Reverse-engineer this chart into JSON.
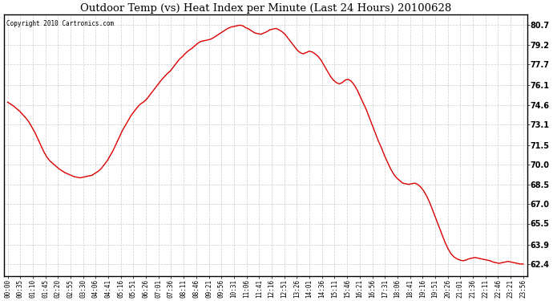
{
  "title": "Outdoor Temp (vs) Heat Index per Minute (Last 24 Hours) 20100628",
  "copyright": "Copyright 2010 Cartronics.com",
  "line_color": "#dd0000",
  "line_width": 1.0,
  "background_color": "#ffffff",
  "grid_color": "#cccccc",
  "grid_style": "--",
  "yticks": [
    62.4,
    63.9,
    65.5,
    67.0,
    68.5,
    70.0,
    71.5,
    73.1,
    74.6,
    76.1,
    77.7,
    79.2,
    80.7
  ],
  "ylim": [
    61.5,
    81.5
  ],
  "xtick_labels": [
    "00:00",
    "00:35",
    "01:10",
    "01:45",
    "02:20",
    "02:55",
    "03:30",
    "04:06",
    "04:41",
    "05:16",
    "05:51",
    "06:26",
    "07:01",
    "07:36",
    "08:11",
    "08:46",
    "09:21",
    "09:56",
    "10:31",
    "11:06",
    "11:41",
    "12:16",
    "12:51",
    "13:26",
    "14:01",
    "14:36",
    "15:11",
    "15:46",
    "16:21",
    "16:56",
    "17:31",
    "18:06",
    "18:41",
    "19:16",
    "19:51",
    "20:26",
    "21:01",
    "21:36",
    "22:11",
    "22:46",
    "23:21",
    "23:56"
  ],
  "y_values": [
    74.8,
    74.65,
    74.5,
    74.3,
    74.1,
    73.85,
    73.6,
    73.3,
    72.9,
    72.5,
    72.0,
    71.5,
    71.0,
    70.6,
    70.3,
    70.1,
    69.9,
    69.7,
    69.55,
    69.4,
    69.3,
    69.2,
    69.1,
    69.05,
    69.0,
    69.05,
    69.1,
    69.15,
    69.2,
    69.35,
    69.5,
    69.7,
    70.0,
    70.3,
    70.7,
    71.1,
    71.6,
    72.1,
    72.6,
    73.0,
    73.4,
    73.8,
    74.1,
    74.4,
    74.65,
    74.8,
    75.0,
    75.3,
    75.6,
    75.9,
    76.2,
    76.5,
    76.75,
    77.0,
    77.2,
    77.5,
    77.8,
    78.1,
    78.3,
    78.55,
    78.75,
    78.9,
    79.1,
    79.3,
    79.45,
    79.5,
    79.55,
    79.6,
    79.7,
    79.85,
    80.0,
    80.15,
    80.3,
    80.45,
    80.55,
    80.6,
    80.65,
    80.7,
    80.65,
    80.5,
    80.4,
    80.25,
    80.1,
    80.05,
    80.0,
    80.1,
    80.2,
    80.35,
    80.4,
    80.45,
    80.35,
    80.2,
    80.0,
    79.7,
    79.4,
    79.1,
    78.8,
    78.6,
    78.5,
    78.6,
    78.7,
    78.65,
    78.5,
    78.3,
    78.0,
    77.6,
    77.2,
    76.8,
    76.5,
    76.3,
    76.2,
    76.3,
    76.5,
    76.55,
    76.4,
    76.1,
    75.7,
    75.2,
    74.7,
    74.2,
    73.6,
    73.0,
    72.4,
    71.8,
    71.3,
    70.7,
    70.2,
    69.7,
    69.3,
    69.0,
    68.8,
    68.6,
    68.55,
    68.5,
    68.55,
    68.6,
    68.5,
    68.3,
    68.0,
    67.6,
    67.1,
    66.5,
    65.9,
    65.3,
    64.7,
    64.1,
    63.6,
    63.2,
    62.95,
    62.8,
    62.7,
    62.65,
    62.7,
    62.8,
    62.85,
    62.9,
    62.85,
    62.8,
    62.75,
    62.7,
    62.65,
    62.55,
    62.5,
    62.45,
    62.5,
    62.55,
    62.6,
    62.55,
    62.5,
    62.45,
    62.4,
    62.4
  ]
}
